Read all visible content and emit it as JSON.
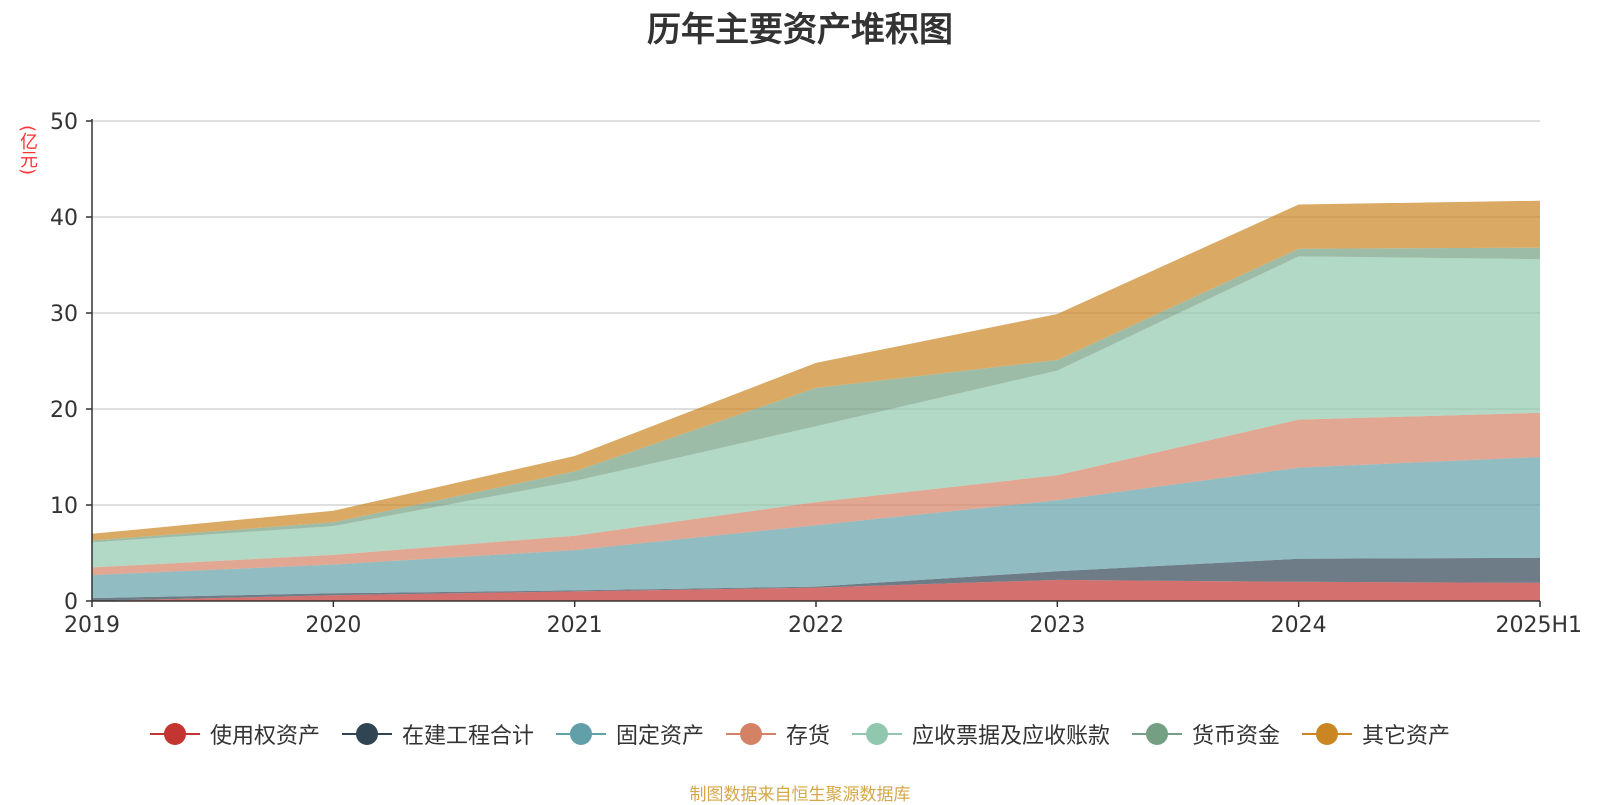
{
  "chart_data": {
    "type": "area",
    "stacked": true,
    "title": "历年主要资产堆积图",
    "y_unit": "(亿元)",
    "categories": [
      "2019",
      "2020",
      "2021",
      "2022",
      "2023",
      "2024",
      "2025H1"
    ],
    "ylim": [
      0,
      50
    ],
    "yticks": [
      0,
      10,
      20,
      30,
      40,
      50
    ],
    "grid": true,
    "legend_position": "bottom",
    "series": [
      {
        "name": "使用权资产",
        "color": "#c23531",
        "values": [
          0.0,
          0.6,
          1.0,
          1.4,
          2.2,
          2.0,
          1.9
        ]
      },
      {
        "name": "在建工程合计",
        "color": "#2f4554",
        "values": [
          0.3,
          0.2,
          0.1,
          0.1,
          0.9,
          2.4,
          2.6
        ]
      },
      {
        "name": "固定资产",
        "color": "#61a0a8",
        "values": [
          2.4,
          3.0,
          4.2,
          6.4,
          7.4,
          9.5,
          10.5
        ]
      },
      {
        "name": "存货",
        "color": "#d48265",
        "values": [
          0.8,
          1.0,
          1.5,
          2.4,
          2.6,
          5.0,
          4.6
        ]
      },
      {
        "name": "应收票据及应收账款",
        "color": "#91c7ae",
        "values": [
          2.6,
          3.0,
          5.7,
          7.9,
          10.9,
          17.0,
          16.0
        ]
      },
      {
        "name": "货币资金",
        "color": "#749f83",
        "values": [
          0.2,
          0.4,
          1.0,
          4.0,
          1.1,
          0.8,
          1.2
        ]
      },
      {
        "name": "其它资产",
        "color": "#ca8622",
        "values": [
          0.7,
          1.2,
          1.6,
          2.6,
          4.8,
          4.6,
          4.9
        ]
      }
    ]
  },
  "footer": {
    "source": "制图数据来自恒生聚源数据库"
  }
}
